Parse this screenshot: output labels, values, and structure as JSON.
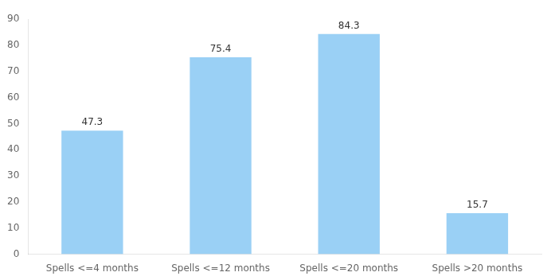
{
  "chart_data": {
    "type": "bar",
    "categories": [
      "Spells <=4 months",
      "Spells <=12 months",
      "Spells <=20 months",
      "Spells >20 months"
    ],
    "values": [
      47.3,
      75.4,
      84.3,
      15.7
    ],
    "ylim": [
      0,
      90
    ],
    "yticks": [
      0,
      10,
      20,
      30,
      40,
      50,
      60,
      70,
      80,
      90
    ],
    "grid": false,
    "data_labels": true
  }
}
